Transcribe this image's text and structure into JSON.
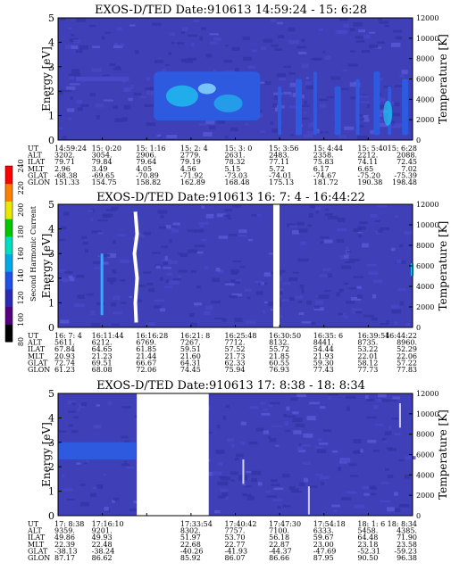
{
  "chart_data": [
    {
      "type": "heatmap",
      "title": "EXOS-D/TED   Date:910613  14:59:24 - 15: 6:28",
      "ylabel": "Energy [eV]",
      "y2label": "Temperature [K]",
      "ylim": [
        0,
        5
      ],
      "y2lim": [
        0,
        12000
      ],
      "yticks": [
        "0",
        "1",
        "2",
        "3",
        "4",
        "5"
      ],
      "y2ticks": [
        "0",
        "2000",
        "4000",
        "6000",
        "8000",
        "10000",
        "12000"
      ],
      "rows": {
        "UT": [
          "14:59:24",
          "15: 0:20",
          "15: 1:16",
          "15: 2: 4",
          "15: 3: 0",
          "15: 3:56",
          "15: 4:44",
          "15: 5:40",
          "15: 6:28"
        ],
        "ALT": [
          "3202.",
          "3054.",
          "2906.",
          "2779.",
          "2631.",
          "2483.",
          "2358.",
          "2212.",
          "2088."
        ],
        "ILAT": [
          "79.71",
          "79.84",
          "79.64",
          "79.19",
          "78.32",
          "77.11",
          "75.83",
          "74.11",
          "72.45"
        ],
        "MLT": [
          "2.96",
          "3.49",
          "4.05",
          "4.56",
          "5.15",
          "5.72",
          "6.17",
          "6.65",
          "7.02"
        ],
        "GLAT": [
          "-68.38",
          "-69.65",
          "-70.89",
          "-71.92",
          "-73.03",
          "-74.01",
          "-74.67",
          "-75.20",
          "-75.39"
        ],
        "GLON": [
          "151.33",
          "154.75",
          "158.82",
          "162.89",
          "168.48",
          "175.13",
          "181.72",
          "190.38",
          "198.48"
        ]
      }
    },
    {
      "type": "heatmap",
      "title": "EXOS-D/TED   Date:910613  16: 7: 4 - 16:44:22",
      "ylabel": "Energy [eV]",
      "y2label": "Temperature [K]",
      "ylim": [
        0,
        5
      ],
      "y2lim": [
        0,
        12000
      ],
      "yticks": [
        "0",
        "1",
        "2",
        "3",
        "4",
        "5"
      ],
      "y2ticks": [
        "0",
        "2000",
        "4000",
        "6000",
        "8000",
        "10000",
        "12000"
      ],
      "rows": {
        "UT": [
          "16: 7: 4",
          "16:11:44",
          "16:16:28",
          "16:21: 8",
          "16:25:48",
          "16:30:50",
          "16:35: 6",
          "16:39:54",
          "16:44:22"
        ],
        "ALT": [
          "5611.",
          "6212.",
          "6769.",
          "7267.",
          "7712.",
          "8132.",
          "8441.",
          "8735.",
          "8960."
        ],
        "ILAT": [
          "67.84",
          "64.65",
          "61.85",
          "59.51",
          "57.52",
          "55.72",
          "54.44",
          "53.22",
          "52.29"
        ],
        "MLT": [
          "20.93",
          "21.23",
          "21.44",
          "21.60",
          "21.73",
          "21.85",
          "21.93",
          "22.01",
          "22.06"
        ],
        "GLAT": [
          "72.74",
          "69.51",
          "66.67",
          "64.31",
          "62.33",
          "60.55",
          "59.30",
          "58.12",
          "57.22"
        ],
        "GLON": [
          "61.23",
          "68.08",
          "72.06",
          "74.45",
          "75.94",
          "76.93",
          "77.43",
          "77.73",
          "77.83"
        ]
      }
    },
    {
      "type": "heatmap",
      "title": "EXOS-D/TED   Date:910613  17: 8:38 - 18: 8:34",
      "ylabel": "Energy [eV]",
      "y2label": "Temperature [K]",
      "ylim": [
        0,
        5
      ],
      "y2lim": [
        0,
        12000
      ],
      "yticks": [
        "0",
        "1",
        "2",
        "3",
        "4",
        "5"
      ],
      "y2ticks": [
        "0",
        "2000",
        "4000",
        "6000",
        "8000",
        "10000",
        "12000"
      ],
      "rows": {
        "UT": [
          "17: 8:38",
          "17:16:10",
          "",
          "17:33:54",
          "17:40:42",
          "17:47:30",
          "17:54:18",
          "18: 1: 6",
          "18: 8:34"
        ],
        "ALT": [
          "9359.",
          "9201.",
          "",
          "8302.",
          "7757.",
          "7100.",
          "6333.",
          "5458.",
          "4385."
        ],
        "ILAT": [
          "49.86",
          "49.93",
          "",
          "51.97",
          "53.70",
          "56.18",
          "59.67",
          "64.48",
          "71.90"
        ],
        "MLT": [
          "22.39",
          "22.48",
          "",
          "22.68",
          "22.77",
          "22.87",
          "23.00",
          "23.18",
          "23.58"
        ],
        "GLAT": [
          "-38.13",
          "-38.24",
          "",
          "-40.26",
          "-41.93",
          "-44.37",
          "-47.69",
          "-52.31",
          "-59.23"
        ],
        "GLON": [
          "87.17",
          "86.62",
          "",
          "85.92",
          "86.07",
          "86.66",
          "87.95",
          "90.50",
          "96.38"
        ]
      }
    }
  ],
  "colorbar": {
    "label": "Second Harmonic Current",
    "ticks": [
      "80",
      "100",
      "120",
      "140",
      "160",
      "180",
      "200",
      "220",
      "240"
    ],
    "colors": [
      "#000000",
      "#55007f",
      "#2a2ab4",
      "#2050e8",
      "#00a8e8",
      "#00e0c0",
      "#00c800",
      "#e8e800",
      "#ff8000",
      "#ff0000"
    ]
  },
  "row_labels": [
    "UT",
    "ALT",
    "ILAT",
    "MLT",
    "GLAT",
    "GLON"
  ],
  "colors": {
    "background": "#3f3fb8",
    "mid": "#2e5ae0",
    "high": "#1ec8f0",
    "trace": "#ffffff"
  }
}
